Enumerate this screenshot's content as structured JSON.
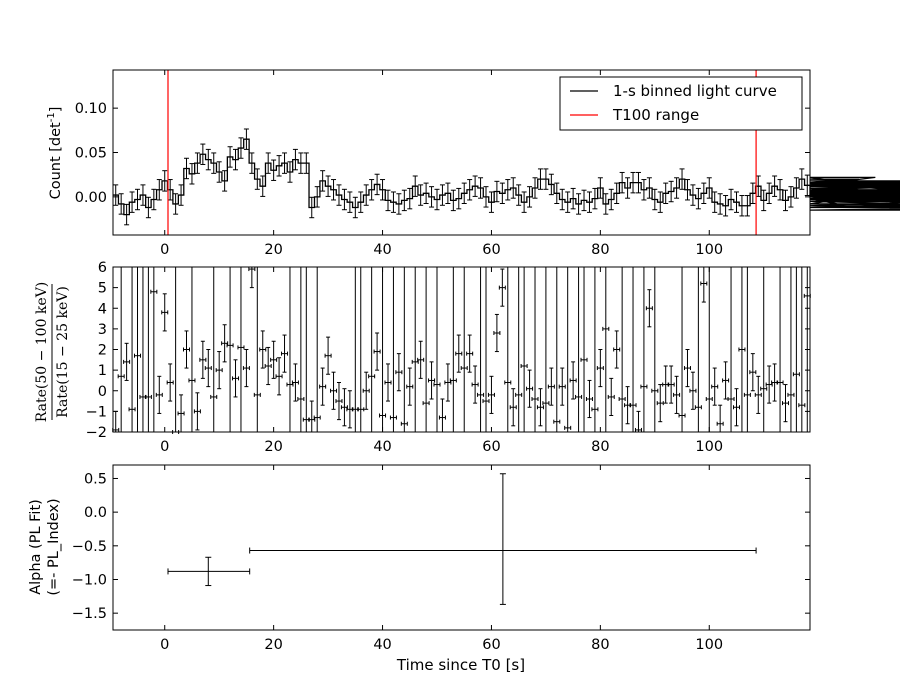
{
  "chart_data": [
    {
      "type": "line",
      "panel": "light-curve",
      "xlabel": "",
      "ylabel": "Count [det",
      "ylabel_sup": "-1",
      "ylabel_close": "]",
      "xlim": [
        -9.5,
        118.5
      ],
      "ylim": [
        -0.043,
        0.143
      ],
      "xticks": [
        0,
        20,
        40,
        60,
        80,
        100
      ],
      "xtick_labels": [
        "0",
        "20",
        "40",
        "60",
        "80",
        "100"
      ],
      "yticks": [
        0.0,
        0.05,
        0.1
      ],
      "ytick_labels": [
        "0.00",
        "0.05",
        "0.10"
      ],
      "legend_position": "top-right",
      "series": [
        {
          "name": "1-s binned light curve",
          "color": "#000000",
          "x_start": -9.5,
          "bin_width": 1,
          "y_err": 0.0115,
          "values": [
            0.002,
            -0.008,
            -0.02,
            -0.006,
            -0.003,
            0.002,
            -0.012,
            -0.003,
            0.008,
            0.018,
            0.008,
            -0.008,
            0.002,
            0.032,
            0.026,
            0.038,
            0.048,
            0.042,
            0.038,
            0.028,
            0.018,
            0.045,
            0.042,
            0.055,
            0.065,
            0.038,
            0.02,
            0.012,
            0.038,
            0.03,
            0.035,
            0.038,
            0.028,
            0.042,
            0.038,
            0.038,
            -0.012,
            0.0,
            0.018,
            0.012,
            0.008,
            0.002,
            -0.003,
            -0.006,
            -0.012,
            -0.006,
            0.002,
            0.008,
            0.014,
            0.008,
            -0.004,
            -0.006,
            -0.008,
            -0.004,
            -0.002,
            0.012,
            0.002,
            0.004,
            0.0,
            -0.003,
            0.002,
            0.004,
            -0.004,
            -0.002,
            0.004,
            0.008,
            0.012,
            0.01,
            0.0,
            -0.006,
            0.006,
            0.004,
            0.008,
            0.01,
            0.002,
            -0.006,
            0.0,
            0.01,
            0.02,
            0.02,
            0.014,
            0.004,
            -0.003,
            -0.006,
            -0.002,
            -0.008,
            -0.004,
            -0.006,
            -0.002,
            0.01,
            -0.008,
            -0.003,
            0.004,
            0.016,
            0.01,
            0.016,
            0.016,
            0.008,
            0.01,
            -0.003,
            -0.006,
            0.004,
            0.006,
            0.01,
            0.02,
            0.008,
            0.002,
            -0.002,
            0.004,
            0.01,
            -0.006,
            -0.008,
            -0.01,
            -0.003,
            -0.006,
            -0.01,
            -0.01,
            0.004,
            0.012,
            -0.004,
            0.004,
            0.012,
            0.008,
            -0.004,
            0.0,
            0.01,
            0.02,
            0.013,
            0.0,
            0.002,
            0.01,
            0.006,
            -0.002,
            -0.008,
            -0.002,
            0.002,
            0.006,
            0.02,
            0.018,
            0.013,
            0.022,
            0.012,
            0.01,
            0.004,
            -0.003,
            0.006,
            0.0,
            0.003,
            0.008,
            0.001,
            0.013,
            0.0,
            -0.003,
            -0.005,
            0.002,
            0.014,
            0.015,
            0.002,
            0.002,
            -0.005,
            -0.01,
            -0.012,
            -0.005,
            0.003,
            0.008,
            0.018,
            0.013,
            0.008,
            0.016,
            0.012,
            0.005,
            0.003,
            -0.003,
            0.003,
            0.002,
            0.007,
            -0.008,
            -0.01,
            -0.015,
            -0.01,
            -0.01,
            0.002,
            0.008,
            0.018,
            0.016,
            0.01
          ]
        },
        {
          "name": "T100 range",
          "color": "#ff0000",
          "vlines": [
            0.6,
            108.6
          ]
        }
      ]
    },
    {
      "type": "scatter",
      "panel": "hardness-ratio",
      "ylabel_num": "Rate(50 − 100 keV)",
      "ylabel_den": "Rate(15 − 25 keV)",
      "xlim": [
        -9.5,
        118.5
      ],
      "ylim": [
        -2,
        6
      ],
      "xticks": [
        0,
        20,
        40,
        60,
        80,
        100
      ],
      "xtick_labels": [
        "0",
        "20",
        "40",
        "60",
        "80",
        "100"
      ],
      "yticks": [
        -2,
        -1,
        0,
        1,
        2,
        3,
        4,
        5,
        6
      ],
      "ytick_labels": [
        "−2",
        "−1",
        "0",
        "1",
        "2",
        "3",
        "4",
        "5",
        "6"
      ],
      "x_start": -9,
      "x_step": 1,
      "values": [
        -1.9,
        0.7,
        1.4,
        -0.9,
        1.7,
        -0.3,
        -0.3,
        4.8,
        -0.2,
        3.8,
        0.4,
        -2.0,
        -1.1,
        2.0,
        0.5,
        -1.0,
        1.5,
        1.1,
        -0.3,
        1.0,
        2.3,
        2.2,
        0.6,
        2.1,
        1.1,
        5.9,
        -0.2,
        2.0,
        1.2,
        1.5,
        0.7,
        1.8,
        0.3,
        0.4,
        -0.4,
        -1.4,
        -1.4,
        -1.3,
        0.2,
        1.7,
        0.0,
        -0.5,
        -0.8,
        -0.9,
        -0.9,
        -0.9,
        0.0,
        0.7,
        1.9,
        -1.2,
        0.4,
        -1.3,
        0.9,
        -1.6,
        0.2,
        1.4,
        1.5,
        -0.6,
        0.5,
        0.3,
        -1.3,
        0.4,
        0.5,
        1.8,
        1.1,
        1.8,
        0.3,
        -0.2,
        -0.5,
        -0.2,
        2.8,
        5.0,
        0.4,
        -0.8,
        -0.2,
        1.2,
        0.1,
        -0.4,
        -0.8,
        -0.6,
        0.2,
        -1.5,
        0.2,
        -1.8,
        0.5,
        -0.3,
        1.5,
        -0.4,
        -0.9,
        1.1,
        3.0,
        -0.3,
        2.0,
        -0.4,
        -0.7,
        -0.7,
        -1.9,
        0.2,
        4.0,
        0.0,
        -0.6,
        0.3,
        0.3,
        -0.2,
        -1.2,
        1.1,
        0.0,
        -0.8,
        5.2,
        -0.4,
        0.2,
        -1.6,
        0.5,
        -0.4,
        -0.8,
        2.0,
        -0.2,
        0.9,
        -0.2,
        0.1,
        0.3,
        0.4,
        0.4,
        -0.6,
        -0.2,
        0.8,
        -0.7,
        4.6,
        4.9
      ],
      "large_err_index": [
        -8,
        -6,
        -5,
        -4,
        -3,
        -2,
        2,
        5,
        9,
        12,
        14,
        17,
        23,
        25,
        26,
        28,
        35,
        36,
        38,
        40,
        42,
        44,
        46,
        48,
        50,
        53,
        55,
        58,
        59,
        63,
        65,
        66,
        68,
        70,
        72,
        74,
        76,
        77,
        79,
        81,
        84,
        86,
        88,
        90,
        95,
        98,
        100,
        104,
        106,
        107,
        110,
        113,
        115,
        116,
        117,
        118
      ],
      "small_err": 0.9
    },
    {
      "type": "scatter",
      "panel": "spectral-index",
      "xlabel": "Time since T0 [s]",
      "ylabel_line1": "Alpha (PL Fit)",
      "ylabel_line2": "(=- PL_Index)",
      "xlim": [
        -9.5,
        118.5
      ],
      "ylim": [
        -1.75,
        0.7
      ],
      "xticks": [
        0,
        20,
        40,
        60,
        80,
        100
      ],
      "xtick_labels": [
        "0",
        "20",
        "40",
        "60",
        "80",
        "100"
      ],
      "yticks": [
        -1.5,
        -1.0,
        -0.5,
        0.0,
        0.5
      ],
      "ytick_labels": [
        "−1.5",
        "−1.0",
        "−0.5",
        "0.0",
        "0.5"
      ],
      "points": [
        {
          "x": 8.0,
          "x_lo": 0.6,
          "x_hi": 15.6,
          "y": -0.88,
          "y_lo": -1.09,
          "y_hi": -0.67
        },
        {
          "x": 62.1,
          "x_lo": 15.6,
          "x_hi": 108.6,
          "y": -0.57,
          "y_lo": -1.37,
          "y_hi": 0.57
        }
      ]
    }
  ]
}
